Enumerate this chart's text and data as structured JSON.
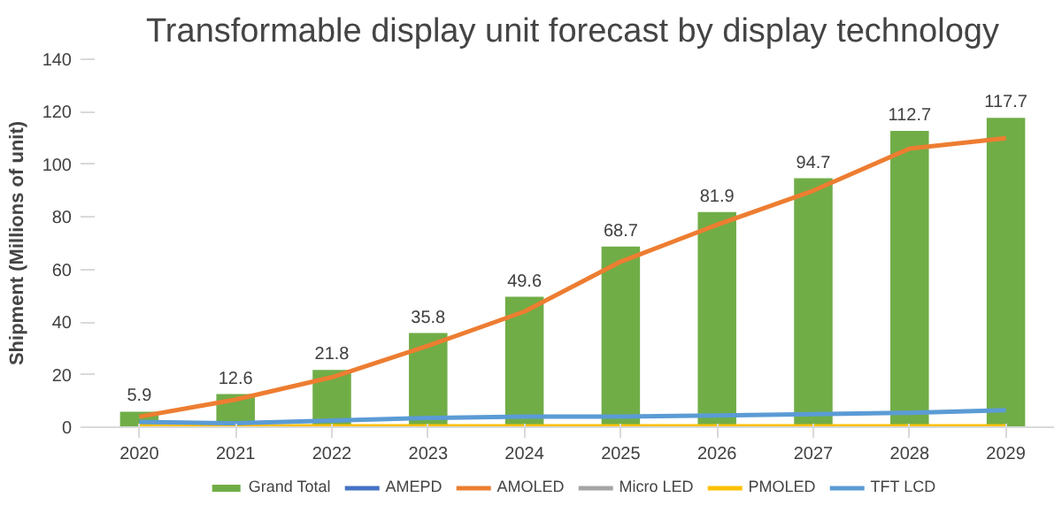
{
  "chart_data": {
    "type": "bar",
    "title": "Transformable display unit forecast by display technology",
    "ylabel": "Shipment (Millions of unit)",
    "categories": [
      "2020",
      "2021",
      "2022",
      "2023",
      "2024",
      "2025",
      "2026",
      "2027",
      "2028",
      "2029"
    ],
    "ylim": [
      0,
      140
    ],
    "yticks": [
      0,
      20,
      40,
      60,
      80,
      100,
      120,
      140
    ],
    "legend": "bottom",
    "line_style": "solid",
    "series": [
      {
        "name": "Grand Total",
        "color": "#70ad47",
        "values": [
          5.9,
          12.6,
          21.8,
          35.8,
          49.6,
          68.7,
          81.9,
          94.7,
          112.7,
          117.7
        ],
        "value_labels": [
          "5.9",
          "12.6",
          "21.8",
          "35.8",
          "49.6",
          "68.7",
          "81.9",
          "94.7",
          "112.7",
          "117.7"
        ]
      },
      {
        "name": "AMEPD",
        "type": "line",
        "color": "#4472c4",
        "values": [
          null,
          null,
          null,
          null,
          null,
          null,
          null,
          null,
          null,
          null
        ]
      },
      {
        "name": "AMOLED",
        "type": "line",
        "color": "#ed7d31",
        "values": [
          4,
          10.5,
          19,
          31,
          44,
          63,
          77,
          90,
          106,
          110
        ]
      },
      {
        "name": "Micro LED",
        "type": "line",
        "color": "#a5a5a5",
        "values": [
          null,
          null,
          null,
          null,
          null,
          null,
          null,
          null,
          null,
          null
        ]
      },
      {
        "name": "PMOLED",
        "type": "line",
        "color": "#ffc000",
        "values": [
          0.3,
          0.3,
          0.3,
          0.3,
          0.3,
          0.3,
          0.3,
          0.3,
          0.3,
          0.3
        ]
      },
      {
        "name": "TFT LCD",
        "type": "line",
        "color": "#5b9bd5",
        "values": [
          2,
          1.5,
          2.5,
          3.5,
          4,
          4,
          4.5,
          5,
          5.5,
          6.5
        ]
      }
    ]
  }
}
